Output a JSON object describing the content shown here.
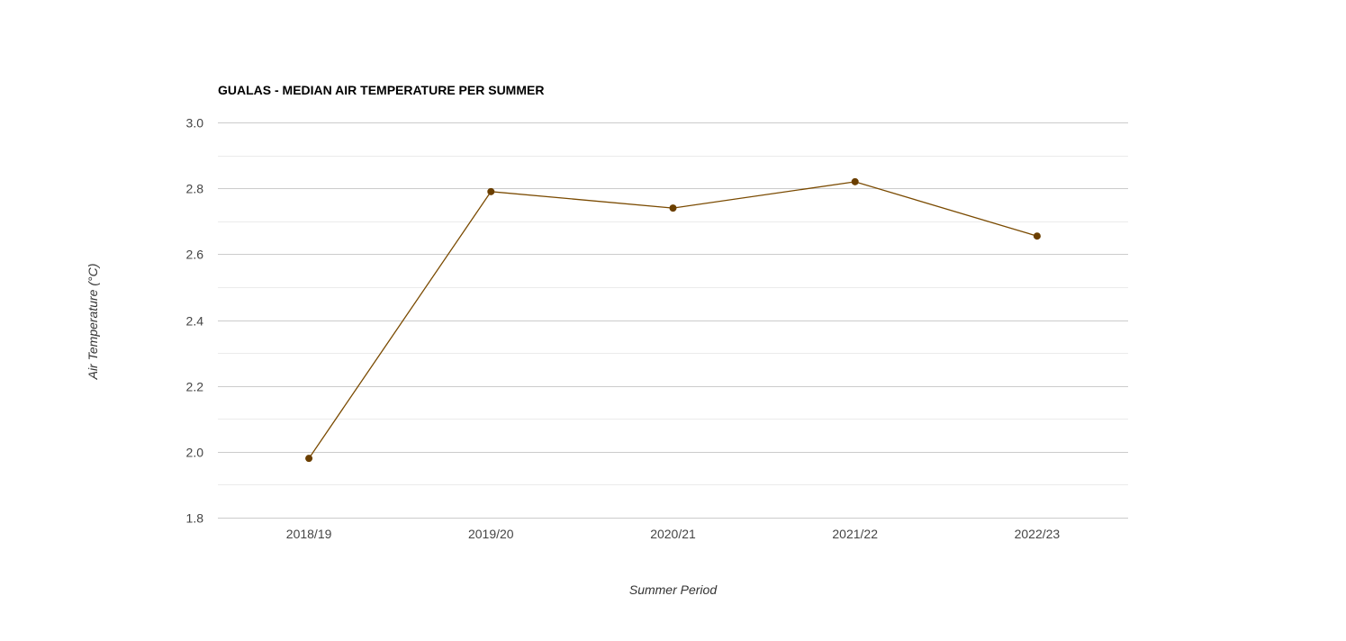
{
  "chart_data": {
    "type": "line",
    "title": "GUALAS - MEDIAN AIR TEMPERATURE PER SUMMER",
    "xlabel": "Summer Period",
    "ylabel": "Air Temperature (°C)",
    "categories": [
      "2018/19",
      "2019/20",
      "2020/21",
      "2021/22",
      "2022/23"
    ],
    "series": [
      {
        "values": [
          1.98,
          2.79,
          2.74,
          2.82,
          2.655
        ]
      }
    ],
    "ylim": [
      1.8,
      3.0
    ],
    "yticks": [
      "1.8",
      "2.0",
      "2.2",
      "2.4",
      "2.6",
      "2.8",
      "3.0"
    ],
    "grid": true,
    "legend": "none",
    "colors": {
      "line": "#7a4a00",
      "marker": "#6b3f00",
      "grid_major": "#cccccc",
      "grid_minor": "#ebebeb",
      "tick_text": "#444444"
    }
  }
}
